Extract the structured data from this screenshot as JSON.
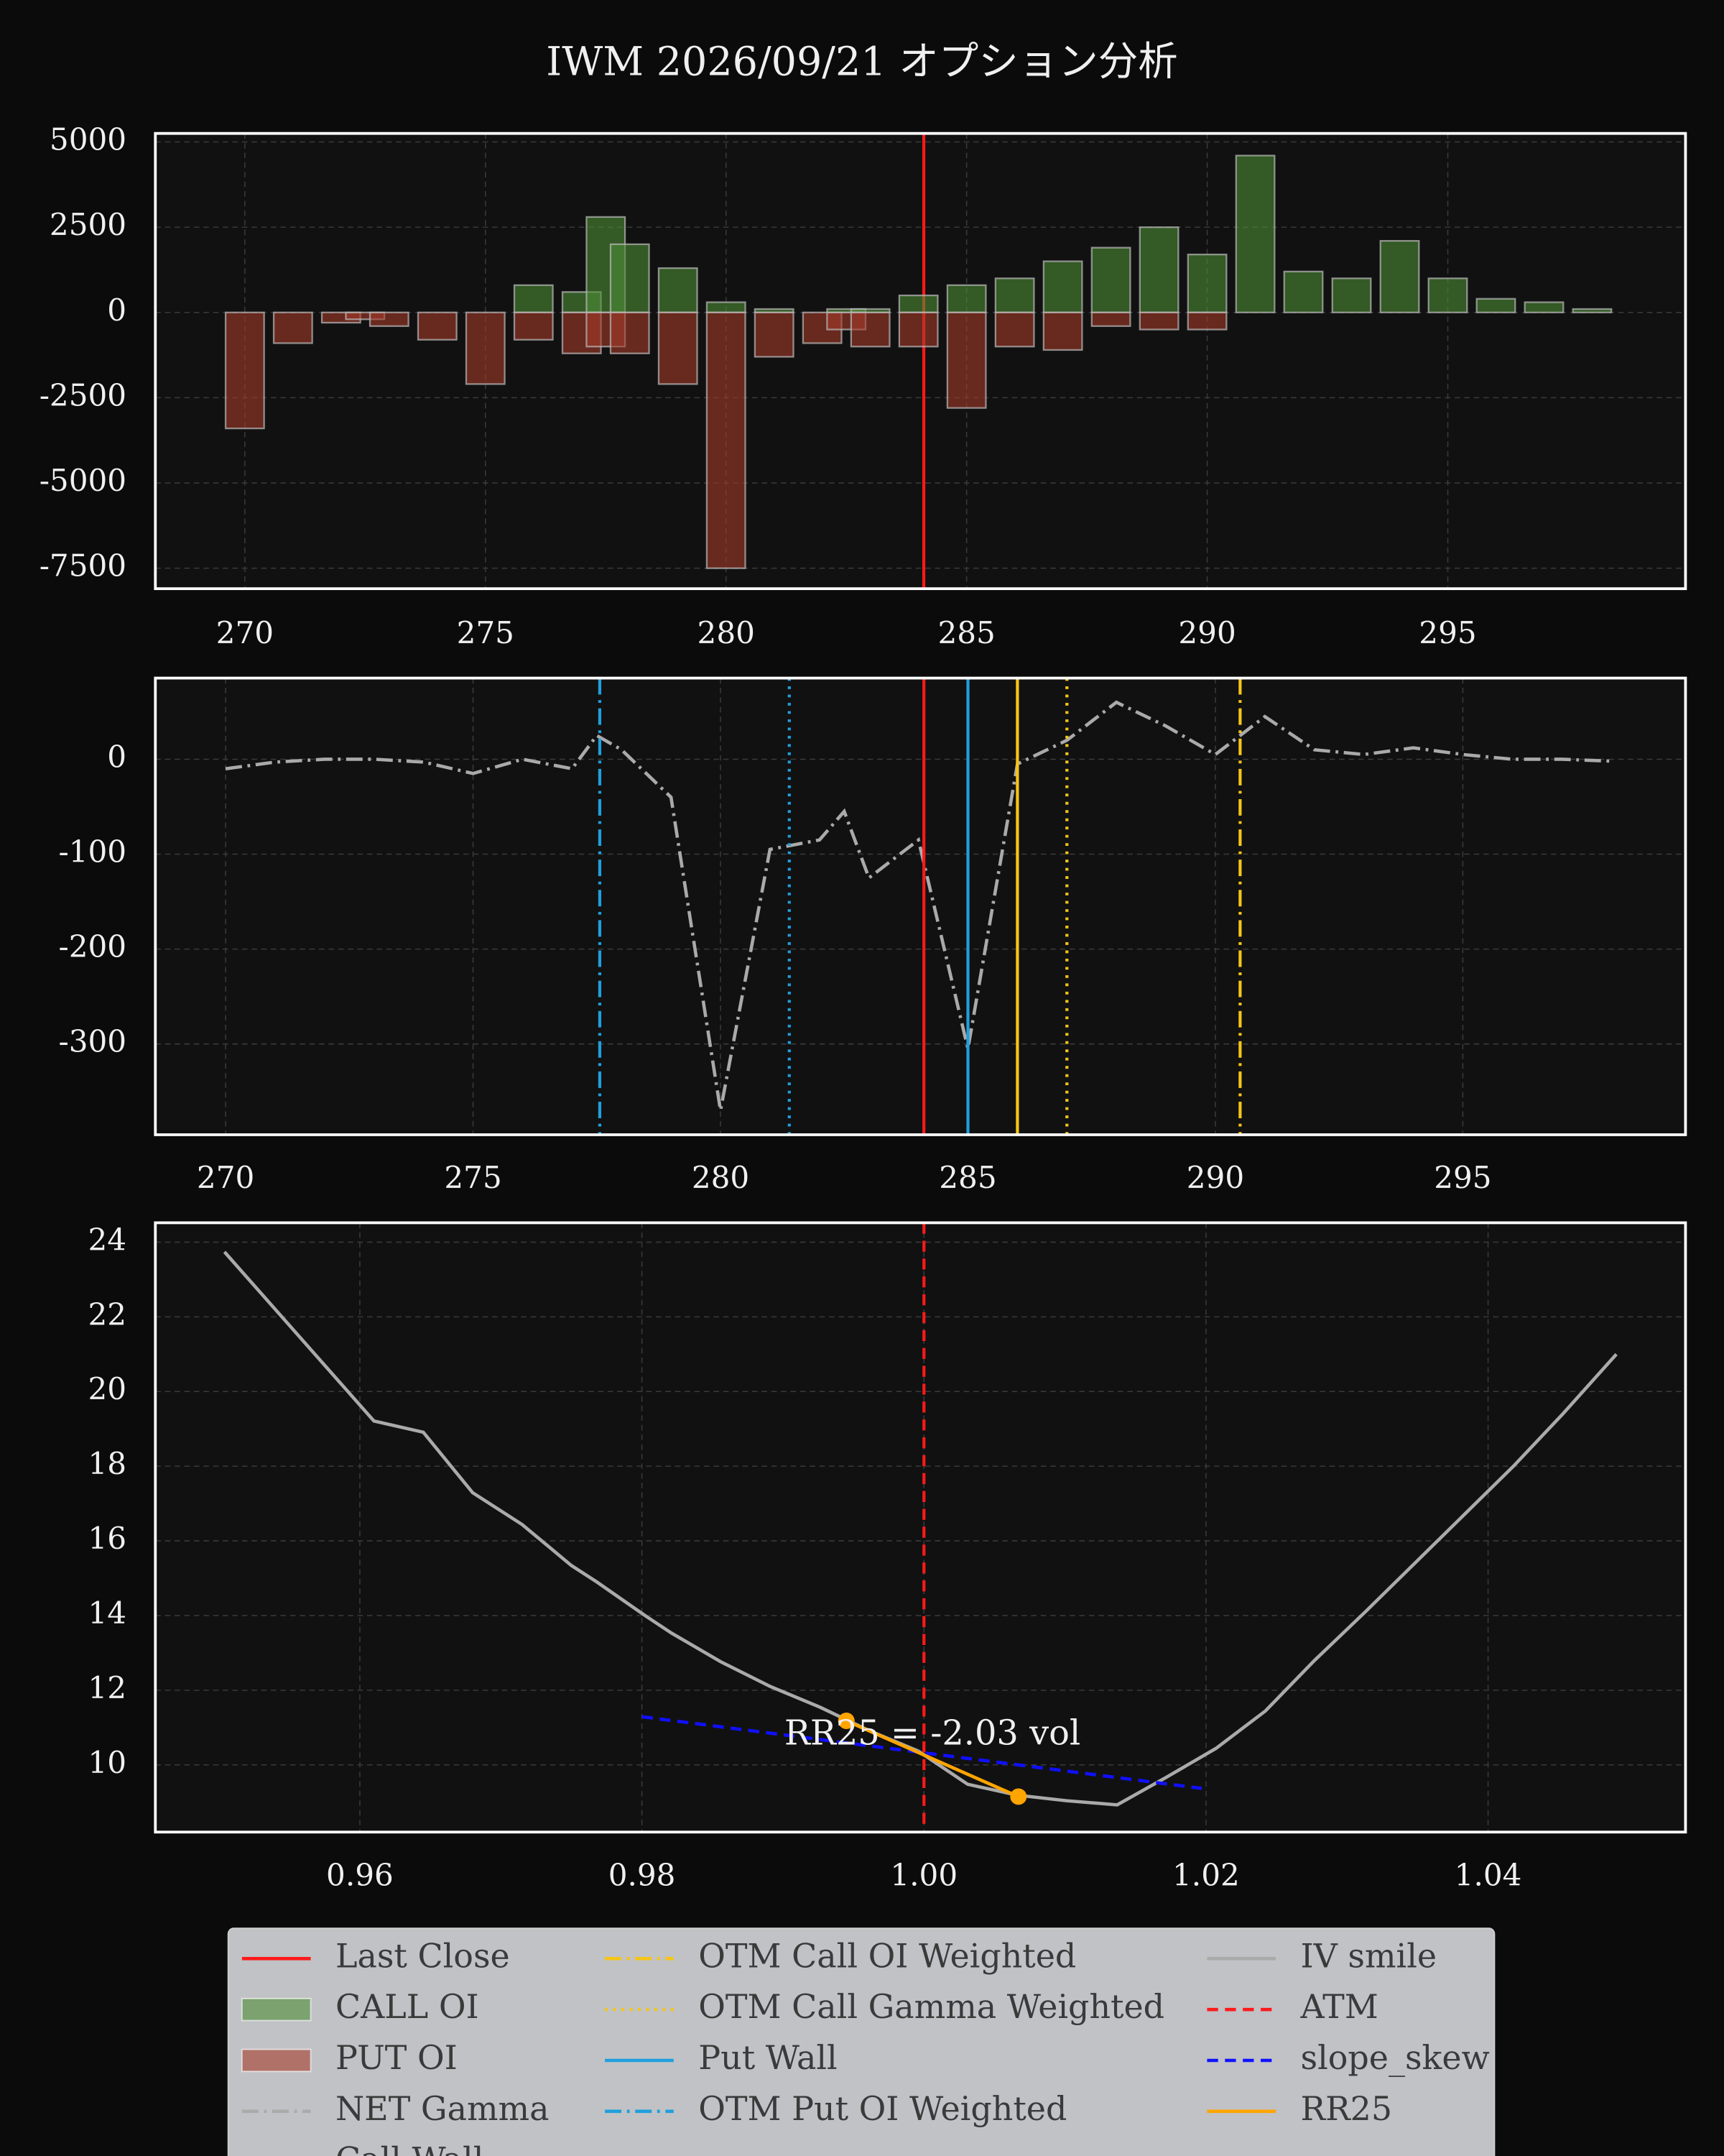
{
  "chart_data": [
    {
      "type": "bar",
      "title": "IWM 2026/09/21 オプション分析",
      "x": [
        270,
        271,
        272,
        272.5,
        273,
        274,
        275,
        276,
        277,
        277.5,
        278,
        279,
        280,
        281,
        282,
        282.5,
        283,
        284,
        285,
        286,
        287,
        288,
        289,
        290,
        291,
        292,
        293,
        294,
        295,
        296,
        297,
        298
      ],
      "series": [
        {
          "name": "Last Close",
          "x": 284.11,
          "color": "#ff1a1a",
          "style": "solid"
        },
        {
          "name": "CALL OI",
          "color": "#4c8c36",
          "values": [
            0,
            0,
            0,
            0,
            0,
            0,
            0,
            800,
            600,
            2800,
            2000,
            1300,
            300,
            100,
            0,
            100,
            100,
            500,
            800,
            1000,
            1500,
            1900,
            2500,
            1700,
            4600,
            1200,
            1000,
            2100,
            1000,
            400,
            300,
            100
          ]
        },
        {
          "name": "PUT OI",
          "color": "#a33a2a",
          "values": [
            -3400,
            -900,
            -300,
            -200,
            -400,
            -800,
            -2100,
            -800,
            -1200,
            -1000,
            -1200,
            -2100,
            -7500,
            -1300,
            -900,
            -500,
            -1000,
            -1000,
            -2800,
            -1000,
            -1100,
            -400,
            -500,
            -500,
            0,
            0,
            0,
            0,
            0,
            0,
            0,
            0
          ]
        }
      ],
      "xlim": [
        268.14,
        299.94
      ],
      "ylim": [
        -8100,
        5250
      ],
      "xticks": [
        270,
        275,
        280,
        285,
        290,
        295
      ],
      "yticks": [
        -7500,
        -5000,
        -2500,
        0,
        2500,
        5000
      ],
      "grid": true
    },
    {
      "type": "line",
      "x": [
        270,
        271,
        272,
        273,
        274,
        275,
        276,
        277,
        277.5,
        278,
        279,
        280,
        281,
        282,
        282.5,
        283,
        284,
        285,
        286,
        287,
        288,
        289,
        290,
        291,
        292,
        293,
        294,
        295,
        296,
        297,
        298
      ],
      "series": [
        {
          "name": "NET Gamma",
          "color": "#aaaaaa",
          "style": "dashdot",
          "values": [
            -10,
            -3,
            0,
            0,
            -3,
            -15,
            0,
            -10,
            25,
            10,
            -40,
            -370,
            -95,
            -85,
            -55,
            -125,
            -85,
            -305,
            -5,
            20,
            60,
            35,
            5,
            45,
            10,
            5,
            12,
            5,
            0,
            0,
            -2
          ]
        },
        {
          "name": "Call Wall",
          "x": 286,
          "color": "#f5c518",
          "style": "solid"
        },
        {
          "name": "OTM Call OI Weighted",
          "x": 290.5,
          "color": "#f5c518",
          "style": "dashdot"
        },
        {
          "name": "OTM Call Gamma Weighted",
          "x": 287,
          "color": "#f5c518",
          "style": "dotted"
        },
        {
          "name": "Put Wall",
          "x": 285,
          "color": "#1fa0dc",
          "style": "solid"
        },
        {
          "name": "OTM Put OI Weighted",
          "x": 277.56,
          "color": "#1fa0dc",
          "style": "dashdot"
        },
        {
          "name": null,
          "x": 281.39,
          "color": "#1fa0dc",
          "style": "dotted"
        },
        {
          "x": 284.11,
          "color": "#ff1a1a",
          "style": "solid"
        }
      ],
      "xlim": [
        268.58,
        299.5
      ],
      "ylim": [
        -395.6,
        85.5
      ],
      "xticks": [
        270,
        275,
        280,
        285,
        290,
        295
      ],
      "yticks": [
        -300,
        -200,
        -100,
        0
      ],
      "grid": true
    },
    {
      "type": "line",
      "series": [
        {
          "name": "IV smile",
          "color": "#aaaaaa",
          "style": "solid",
          "x": [
            0.9504,
            0.961,
            0.9645,
            0.968,
            0.9715,
            0.975,
            0.9768,
            0.9803,
            0.9821,
            0.9856,
            0.9891,
            0.9926,
            0.9961,
            0.9996,
            1.0031,
            1.0066,
            1.0101,
            1.0137,
            1.0172,
            1.0207,
            1.0242,
            1.0277,
            1.0313,
            1.0348,
            1.0383,
            1.0418,
            1.0453,
            1.0491
          ],
          "values": [
            23.74,
            19.21,
            18.91,
            17.29,
            16.44,
            15.34,
            14.9,
            13.98,
            13.53,
            12.76,
            12.1,
            11.55,
            10.92,
            10.37,
            9.48,
            9.19,
            9.04,
            8.93,
            9.67,
            10.44,
            11.44,
            12.8,
            14.1,
            15.4,
            16.7,
            18.0,
            19.4,
            21.0
          ]
        },
        {
          "name": "ATM",
          "x": 1,
          "color": "#ff1a1a",
          "style": "dashed"
        },
        {
          "name": "slope_skew",
          "color": "#1010ff",
          "style": "dashed",
          "x": [
            0.98,
            1.0197
          ],
          "values": [
            11.29,
            9.37
          ]
        },
        {
          "name": "RR25",
          "color": "#ffa500",
          "style": "solid",
          "markers": true,
          "x": [
            0.9945,
            1.0067
          ],
          "values": [
            11.18,
            9.15
          ]
        }
      ],
      "annotations": [
        {
          "text": "RR25 = -2.03 vol",
          "x": 1.0006,
          "y": 10.78
        }
      ],
      "xlim": [
        0.9455,
        1.054
      ],
      "ylim": [
        8.2,
        24.52
      ],
      "xticks": [
        0.96,
        0.98,
        {
          "value": 1,
          "label": "1.00"
        },
        1.02,
        1.04
      ],
      "yticks": [
        10,
        12,
        14,
        16,
        18,
        20,
        22,
        24
      ],
      "grid": true
    }
  ]
}
